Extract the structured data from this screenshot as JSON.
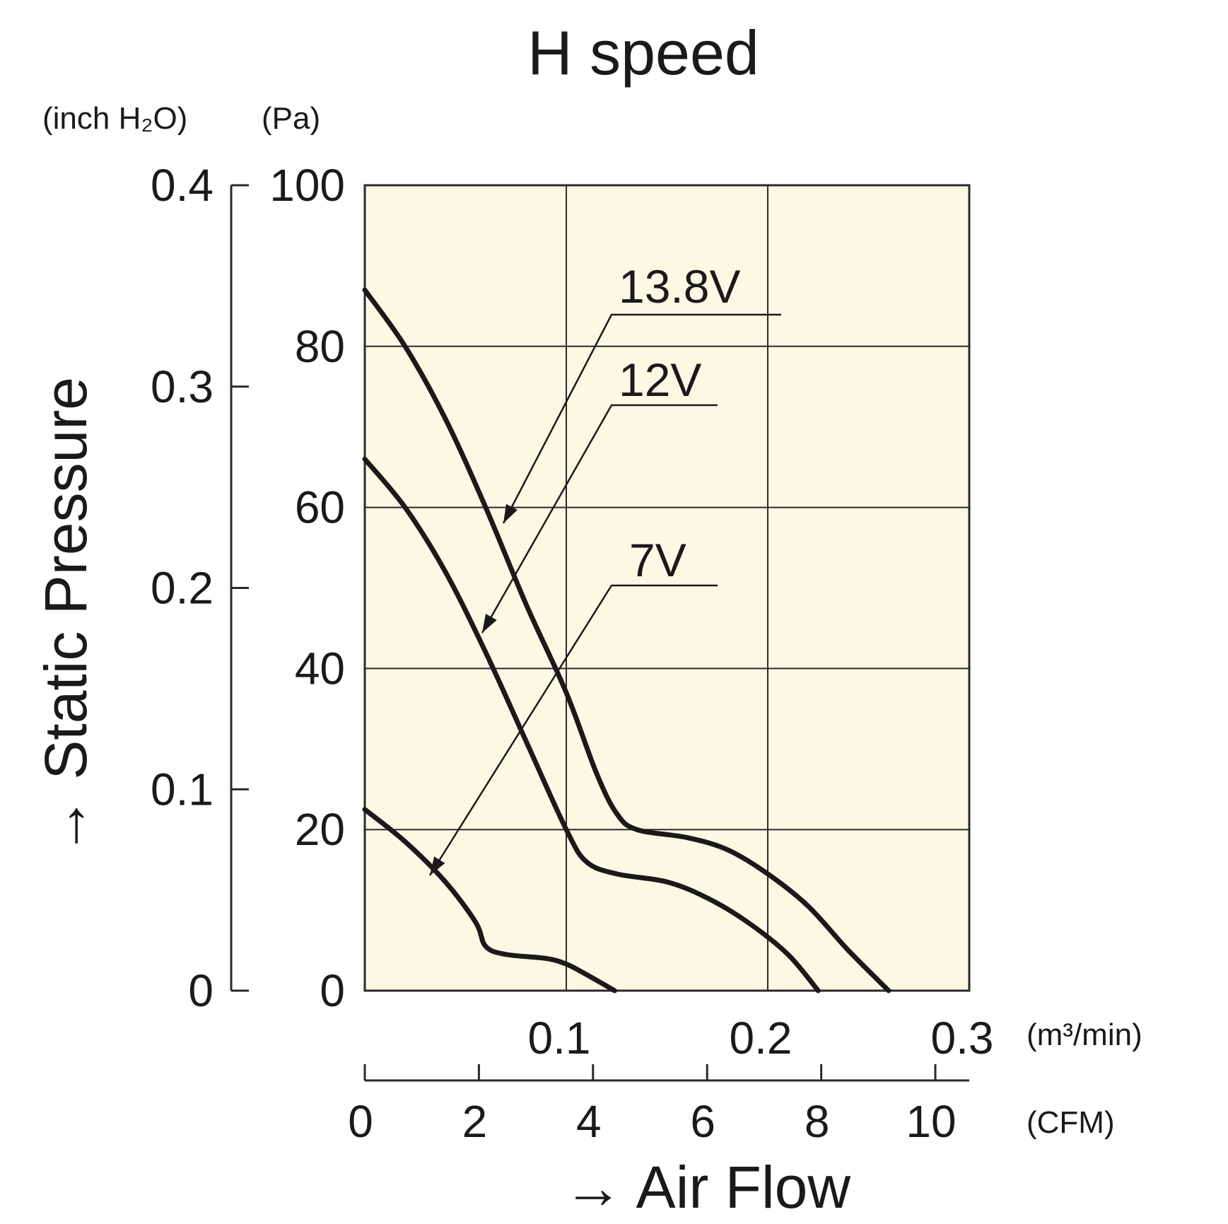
{
  "chart_data": {
    "type": "line",
    "title": "H speed",
    "xlabel": "→ Air Flow",
    "ylabel": "→ Static Pressure",
    "x_unit_primary": "(m³/min)",
    "x_unit_secondary": "(CFM)",
    "y_unit_primary": "(Pa)",
    "y_unit_secondary": "(inch H₂O)",
    "xlim": [
      0,
      0.3
    ],
    "ylim": [
      0,
      100
    ],
    "x_ticks_primary": [
      "0.1",
      "0.2",
      "0.3"
    ],
    "x_ticks_secondary": [
      "0",
      "2",
      "4",
      "6",
      "8",
      "10"
    ],
    "y_ticks_primary": [
      "0",
      "20",
      "40",
      "60",
      "80",
      "100"
    ],
    "y_ticks_secondary": [
      "0",
      "0.1",
      "0.2",
      "0.3",
      "0.4"
    ],
    "grid": true,
    "series": [
      {
        "name": "13.8V",
        "points": [
          [
            0,
            87
          ],
          [
            0.02,
            80
          ],
          [
            0.04,
            71
          ],
          [
            0.06,
            60
          ],
          [
            0.08,
            48
          ],
          [
            0.1,
            37
          ],
          [
            0.115,
            27
          ],
          [
            0.125,
            22
          ],
          [
            0.135,
            20
          ],
          [
            0.16,
            19
          ],
          [
            0.18,
            17.5
          ],
          [
            0.2,
            14.5
          ],
          [
            0.22,
            10.5
          ],
          [
            0.24,
            5
          ],
          [
            0.26,
            0
          ]
        ]
      },
      {
        "name": "12V",
        "points": [
          [
            0,
            66
          ],
          [
            0.02,
            60
          ],
          [
            0.04,
            52
          ],
          [
            0.06,
            42
          ],
          [
            0.08,
            31
          ],
          [
            0.1,
            20
          ],
          [
            0.11,
            16
          ],
          [
            0.125,
            14.5
          ],
          [
            0.15,
            13.5
          ],
          [
            0.17,
            11.5
          ],
          [
            0.19,
            8.5
          ],
          [
            0.21,
            4.5
          ],
          [
            0.225,
            0
          ]
        ]
      },
      {
        "name": "7V",
        "points": [
          [
            0,
            22.5
          ],
          [
            0.02,
            18.5
          ],
          [
            0.04,
            13.5
          ],
          [
            0.055,
            8.5
          ],
          [
            0.06,
            5.5
          ],
          [
            0.07,
            4.5
          ],
          [
            0.09,
            4
          ],
          [
            0.1,
            3.3
          ],
          [
            0.11,
            2
          ],
          [
            0.124,
            0
          ]
        ]
      }
    ]
  }
}
